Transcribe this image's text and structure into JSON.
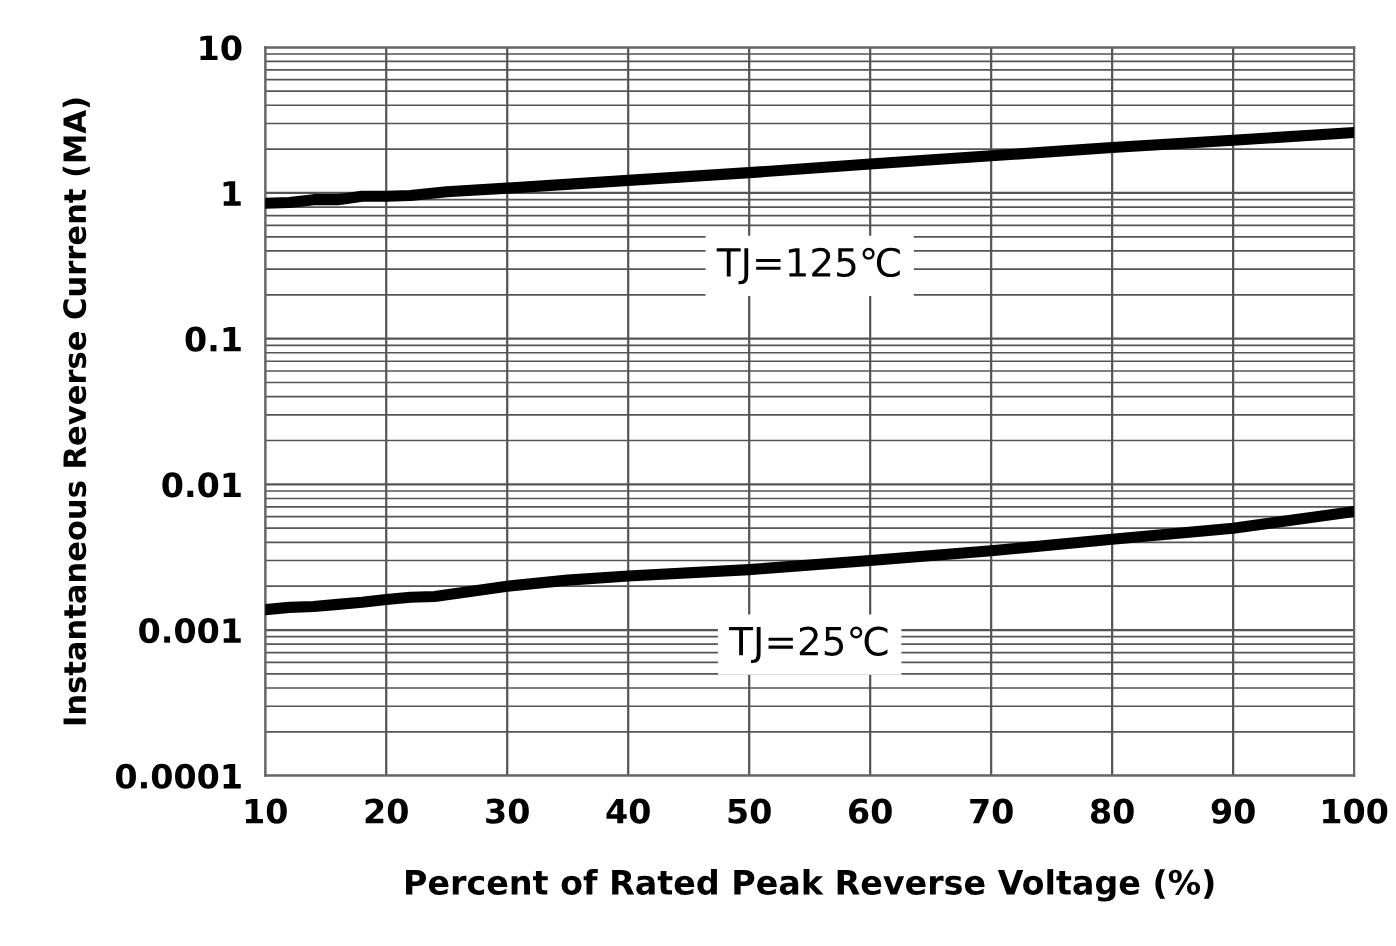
{
  "chart_data": {
    "type": "line",
    "xlabel": "Percent of Rated Peak Reverse Voltage (%)",
    "ylabel": "Instantaneous Reverse Current (MA)",
    "log": "y",
    "xlim": [
      10,
      100
    ],
    "xticks": [
      10,
      20,
      30,
      40,
      50,
      60,
      70,
      80,
      90,
      100
    ],
    "ylim": [
      0.0001,
      10
    ],
    "yticks": [
      0.0001,
      0.001,
      0.01,
      0.1,
      1,
      10
    ],
    "grid": true,
    "marker": "none",
    "line_style": "solid",
    "series": [
      {
        "color": "#000000",
        "x": [
          10,
          12,
          14,
          16,
          18,
          20,
          22,
          25,
          30,
          40,
          50,
          60,
          70,
          80,
          90,
          100
        ],
        "values": [
          0.85,
          0.86,
          0.9,
          0.9,
          0.95,
          0.95,
          0.96,
          1.02,
          1.08,
          1.22,
          1.38,
          1.58,
          1.8,
          2.05,
          2.3,
          2.6
        ]
      },
      {
        "color": "#000000",
        "x": [
          10,
          12,
          14,
          16,
          18,
          20,
          22,
          24,
          30,
          35,
          40,
          50,
          60,
          70,
          80,
          90,
          100
        ],
        "values": [
          0.00138,
          0.00143,
          0.00145,
          0.0015,
          0.00155,
          0.00162,
          0.00168,
          0.0017,
          0.002,
          0.0022,
          0.00235,
          0.0026,
          0.003,
          0.0035,
          0.0042,
          0.005,
          0.0065
        ]
      }
    ],
    "annotations": [
      "TJ=125℃",
      "TJ=25℃"
    ]
  }
}
